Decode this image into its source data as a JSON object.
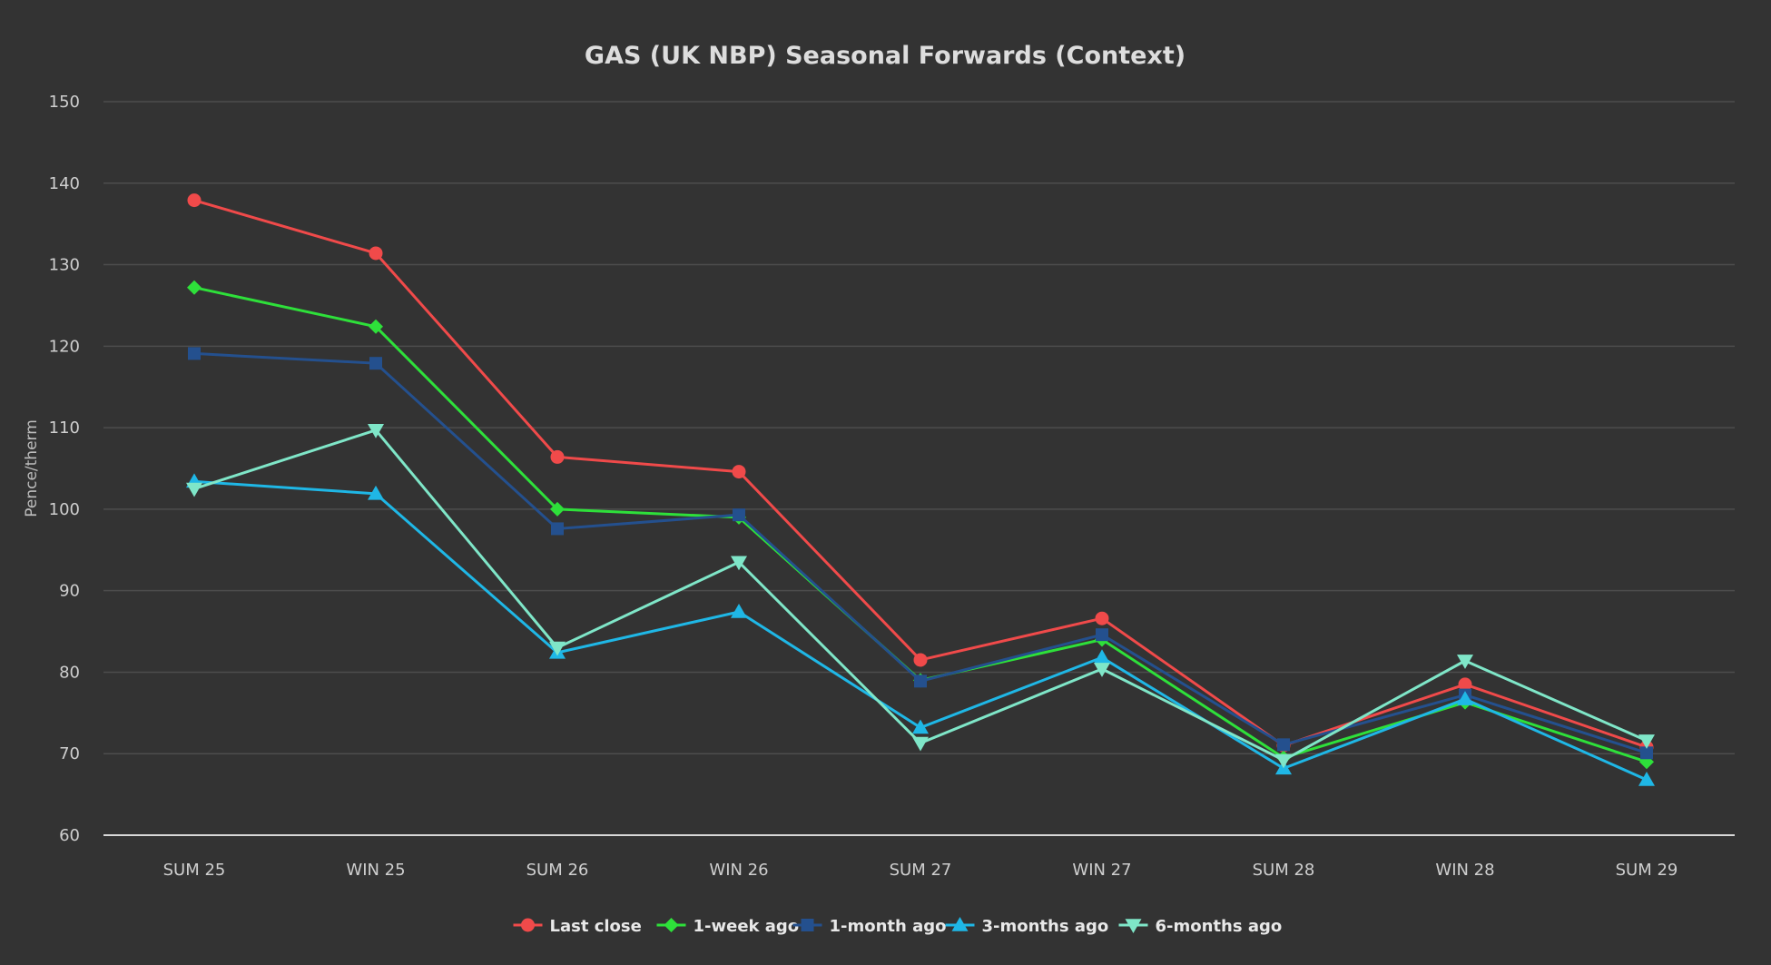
{
  "chart_data": {
    "type": "line",
    "title": "GAS (UK NBP) Seasonal Forwards (Context)",
    "xlabel": "",
    "ylabel": "Pence/therm",
    "ylim": [
      60,
      150
    ],
    "yticks": [
      60,
      70,
      80,
      90,
      100,
      110,
      120,
      130,
      140,
      150
    ],
    "grid": true,
    "legend_position": "bottom-center",
    "categories": [
      "SUM 25",
      "WIN 25",
      "SUM 26",
      "WIN 26",
      "SUM 27",
      "WIN 27",
      "SUM 28",
      "WIN 28",
      "SUM 29"
    ],
    "series": [
      {
        "name": "Last close",
        "color": "#f04a4a",
        "marker": "circle",
        "values": [
          137.9,
          131.4,
          106.4,
          104.6,
          81.5,
          86.6,
          71.0,
          78.5,
          70.8
        ]
      },
      {
        "name": "1-week ago",
        "color": "#2ee03a",
        "marker": "diamond",
        "values": [
          127.2,
          122.4,
          100.0,
          99.0,
          79.0,
          84.0,
          69.5,
          76.3,
          69.0
        ]
      },
      {
        "name": "1-month ago",
        "color": "#24508e",
        "marker": "square",
        "values": [
          119.1,
          117.9,
          97.6,
          99.3,
          78.9,
          84.6,
          71.1,
          77.2,
          70.1
        ]
      },
      {
        "name": "3-months ago",
        "color": "#1fb7e6",
        "marker": "triangle-up",
        "values": [
          103.4,
          101.9,
          82.4,
          87.4,
          73.2,
          81.8,
          68.2,
          76.7,
          66.8
        ]
      },
      {
        "name": "6-months ago",
        "color": "#7fe6c8",
        "marker": "triangle-down",
        "values": [
          102.5,
          109.7,
          83.0,
          93.5,
          71.3,
          80.4,
          69.2,
          81.4,
          71.6
        ]
      }
    ]
  }
}
